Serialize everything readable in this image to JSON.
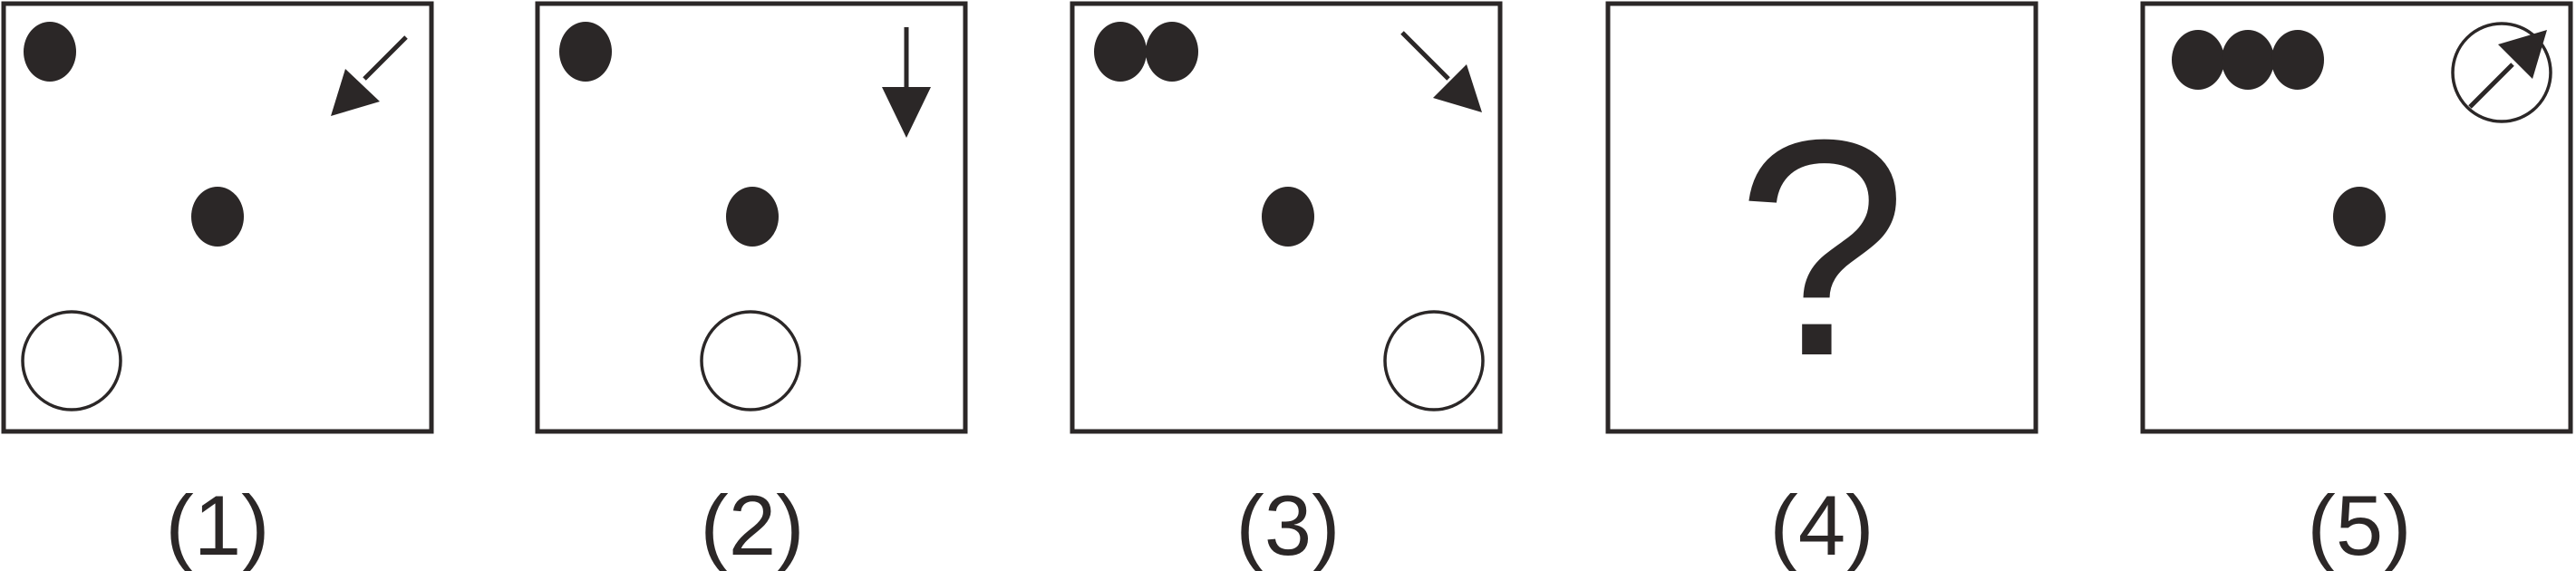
{
  "puzzle": {
    "panels": [
      {
        "id": 1,
        "label": "(1)",
        "top_dots": 1,
        "arrow_direction": "down-left",
        "circle_position": "bottom-left",
        "arrow_circled": false
      },
      {
        "id": 2,
        "label": "(2)",
        "top_dots": 1,
        "arrow_direction": "down",
        "circle_position": "bottom-center",
        "arrow_circled": false
      },
      {
        "id": 3,
        "label": "(3)",
        "top_dots": 2,
        "arrow_direction": "down-right",
        "circle_position": "bottom-right",
        "arrow_circled": false
      },
      {
        "id": 4,
        "label": "(4)",
        "unknown_symbol": "?"
      },
      {
        "id": 5,
        "label": "(5)",
        "top_dots": 3,
        "arrow_direction": "up-right",
        "circle_position": "top-right",
        "arrow_circled": true
      }
    ]
  },
  "colors": {
    "ink": "#2b2727",
    "background": "#ffffff"
  }
}
